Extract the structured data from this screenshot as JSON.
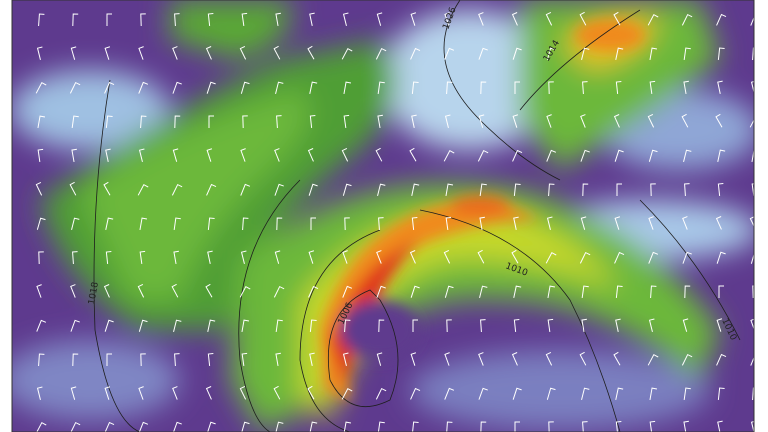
{
  "map": {
    "field_colors": {
      "low": "#5a2a85",
      "calm": "#a8c8e8",
      "moderate": "#6cb83a",
      "strong": "#c6d82a",
      "high": "#f08a1e",
      "max": "#e0321e"
    },
    "isobar_labels": [
      "1026",
      "1014",
      "1018",
      "1010",
      "1006",
      "1010"
    ],
    "overlay": [
      "isobars",
      "wind-barbs",
      "coastlines"
    ]
  }
}
